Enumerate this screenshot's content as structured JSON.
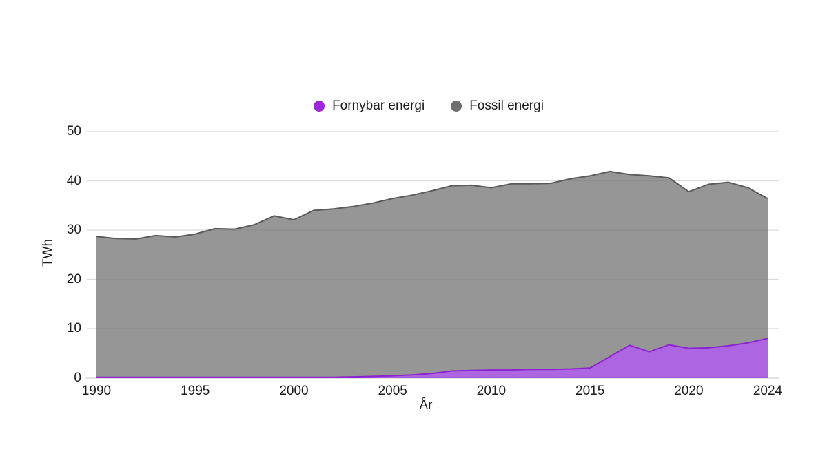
{
  "chart_data": {
    "type": "area",
    "stacked": true,
    "title": "",
    "xlabel": "År",
    "ylabel": "TWh",
    "x": [
      1990,
      1991,
      1992,
      1993,
      1994,
      1995,
      1996,
      1997,
      1998,
      1999,
      2000,
      2001,
      2002,
      2003,
      2004,
      2005,
      2006,
      2007,
      2008,
      2009,
      2010,
      2011,
      2012,
      2013,
      2014,
      2015,
      2016,
      2017,
      2018,
      2019,
      2020,
      2021,
      2022,
      2023,
      2024
    ],
    "series": [
      {
        "name": "Fornybar energi",
        "legend_color": "#9c27dd",
        "fill_color": "#8f2ad7",
        "fill_opacity": 0.72,
        "line_color": "#8b23d2",
        "values": [
          0.1,
          0.1,
          0.1,
          0.1,
          0.1,
          0.1,
          0.1,
          0.1,
          0.1,
          0.1,
          0.1,
          0.1,
          0.1,
          0.2,
          0.3,
          0.4,
          0.6,
          0.9,
          1.4,
          1.5,
          1.6,
          1.6,
          1.7,
          1.7,
          1.8,
          2.0,
          4.3,
          6.6,
          5.3,
          6.7,
          6.0,
          6.1,
          6.5,
          7.1,
          8.0
        ]
      },
      {
        "name": "Fossil energi",
        "legend_color": "#6e6e6e",
        "fill_color": "#787878",
        "fill_opacity": 0.78,
        "line_color": "#5a5a5a",
        "values": [
          28.6,
          28.2,
          28.1,
          28.8,
          28.5,
          29.1,
          30.2,
          30.1,
          31.0,
          32.8,
          32.0,
          33.9,
          34.2,
          34.6,
          35.2,
          36.0,
          36.5,
          37.1,
          37.6,
          37.6,
          37.0,
          37.8,
          37.7,
          37.8,
          38.6,
          39.0,
          37.6,
          34.7,
          35.7,
          33.9,
          31.8,
          33.2,
          33.2,
          31.5,
          28.4
        ]
      }
    ],
    "y_ticks": [
      0,
      10,
      20,
      30,
      40,
      50
    ],
    "x_ticks": [
      1990,
      1995,
      2000,
      2005,
      2010,
      2015,
      2020,
      2024
    ],
    "ylim": [
      0,
      50
    ],
    "xlim": [
      1990,
      2024
    ],
    "grid": "horizontal",
    "gridline_color": "#dbdbdb",
    "axisline_color": "#909090",
    "legend_position": "top-center"
  }
}
